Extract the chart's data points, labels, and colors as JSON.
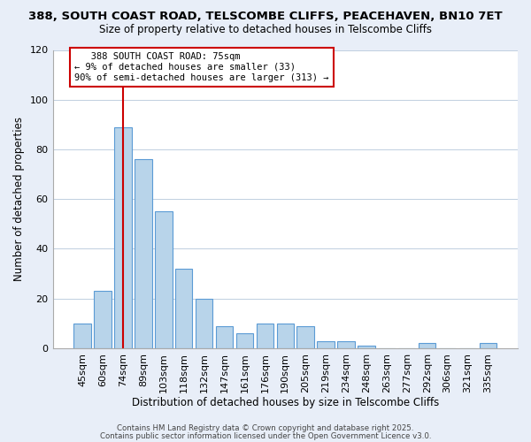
{
  "title1": "388, SOUTH COAST ROAD, TELSCOMBE CLIFFS, PEACEHAVEN, BN10 7ET",
  "title2": "Size of property relative to detached houses in Telscombe Cliffs",
  "xlabel": "Distribution of detached houses by size in Telscombe Cliffs",
  "ylabel": "Number of detached properties",
  "categories": [
    "45sqm",
    "60sqm",
    "74sqm",
    "89sqm",
    "103sqm",
    "118sqm",
    "132sqm",
    "147sqm",
    "161sqm",
    "176sqm",
    "190sqm",
    "205sqm",
    "219sqm",
    "234sqm",
    "248sqm",
    "263sqm",
    "277sqm",
    "292sqm",
    "306sqm",
    "321sqm",
    "335sqm"
  ],
  "values": [
    10,
    23,
    89,
    76,
    55,
    32,
    20,
    9,
    6,
    10,
    10,
    9,
    3,
    3,
    1,
    0,
    0,
    2,
    0,
    0,
    2
  ],
  "bar_color": "#b8d4ea",
  "bar_edge_color": "#5b9bd5",
  "vline_x_index": 2,
  "vline_color": "#cc0000",
  "ylim": [
    0,
    120
  ],
  "yticks": [
    0,
    20,
    40,
    60,
    80,
    100,
    120
  ],
  "ann_line1": "   388 SOUTH COAST ROAD: 75sqm",
  "ann_line2": "← 9% of detached houses are smaller (33)",
  "ann_line3": "90% of semi-detached houses are larger (313) →",
  "annotation_box_color": "#cc0000",
  "footer1": "Contains HM Land Registry data © Crown copyright and database right 2025.",
  "footer2": "Contains public sector information licensed under the Open Government Licence v3.0.",
  "bg_color": "#e8eef8",
  "plot_bg_color": "#ffffff",
  "grid_color": "#c0cfe0"
}
